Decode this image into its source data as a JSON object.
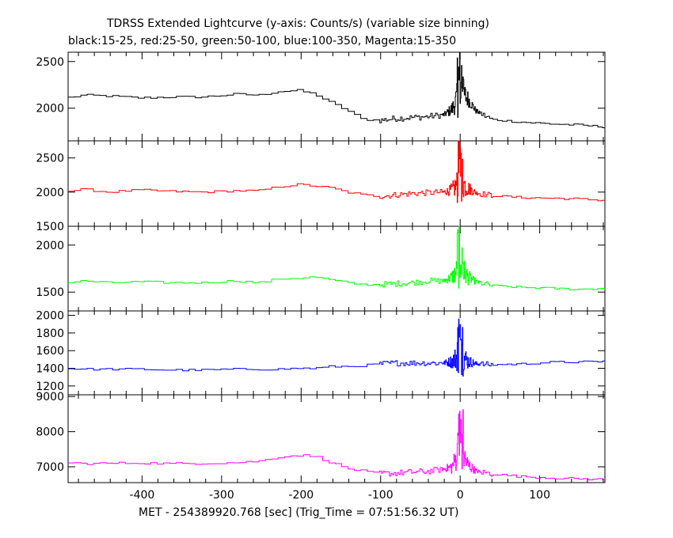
{
  "header": {
    "title_line1": "TDRSS Extended Lightcurve (y-axis: Counts/s) (variable size binning)",
    "title_line2": "black:15-25, red:25-50, green:50-100, blue:100-350, Magenta:15-350"
  },
  "chart_data": {
    "type": "line",
    "title": "TDRSS Extended Lightcurve (y-axis: Counts/s) (variable size binning)",
    "subtitle": "black:15-25, red:25-50, green:50-100, blue:100-350, Magenta:15-350",
    "xlabel": "MET - 254389920.768 [sec] (Trig_Time = 07:51:56.32 UT)",
    "ylabel": "Counts/s",
    "x_ticks": [
      -400,
      -300,
      -200,
      -100,
      0,
      100
    ],
    "xlim": [
      -493,
      182
    ],
    "grid": false,
    "panels": [
      {
        "band": "15-25",
        "color": "#000000",
        "ylim": [
          1650,
          2600
        ],
        "yticks": [
          2000,
          2500
        ],
        "x": [
          -493,
          -470,
          -440,
          -400,
          -360,
          -320,
          -280,
          -250,
          -225,
          -200,
          -180,
          -160,
          -140,
          -120,
          -100,
          -80,
          -60,
          -40,
          -20,
          -10,
          0,
          10,
          20,
          40,
          80,
          120,
          150,
          182
        ],
        "values": [
          2110,
          2140,
          2130,
          2110,
          2120,
          2120,
          2150,
          2140,
          2180,
          2190,
          2150,
          2060,
          1980,
          1880,
          1870,
          1890,
          1900,
          1910,
          1930,
          1990,
          2180,
          2100,
          1970,
          1880,
          1850,
          1830,
          1820,
          1800
        ]
      },
      {
        "band": "25-50",
        "color": "#ff0000",
        "ylim": [
          1500,
          2750
        ],
        "yticks": [
          1500,
          2000,
          2500
        ],
        "x": [
          -493,
          -470,
          -440,
          -400,
          -360,
          -320,
          -280,
          -250,
          -225,
          -200,
          -180,
          -160,
          -140,
          -120,
          -100,
          -80,
          -60,
          -40,
          -20,
          -10,
          0,
          10,
          20,
          40,
          80,
          120,
          150,
          182
        ],
        "values": [
          2010,
          2040,
          2000,
          2030,
          2010,
          2000,
          2020,
          2020,
          2080,
          2110,
          2090,
          2060,
          2000,
          1960,
          1940,
          1960,
          1980,
          1990,
          2000,
          2030,
          2160,
          2060,
          1990,
          1950,
          1920,
          1910,
          1900,
          1880
        ]
      },
      {
        "band": "50-100",
        "color": "#00ff00",
        "ylim": [
          1300,
          2200
        ],
        "yticks": [
          1500,
          2000
        ],
        "x": [
          -493,
          -470,
          -440,
          -400,
          -360,
          -320,
          -280,
          -250,
          -225,
          -200,
          -180,
          -160,
          -140,
          -120,
          -100,
          -80,
          -60,
          -40,
          -20,
          -10,
          0,
          10,
          20,
          40,
          80,
          120,
          150,
          182
        ],
        "values": [
          1600,
          1620,
          1600,
          1610,
          1600,
          1600,
          1620,
          1600,
          1640,
          1650,
          1660,
          1630,
          1600,
          1580,
          1580,
          1590,
          1600,
          1620,
          1620,
          1660,
          1760,
          1660,
          1610,
          1570,
          1550,
          1540,
          1530,
          1540
        ]
      },
      {
        "band": "100-350",
        "color": "#0000ff",
        "ylim": [
          1100,
          2050
        ],
        "yticks": [
          1200,
          1400,
          1600,
          1800,
          2000
        ],
        "x": [
          -493,
          -470,
          -440,
          -400,
          -360,
          -320,
          -280,
          -250,
          -225,
          -200,
          -180,
          -160,
          -140,
          -120,
          -100,
          -80,
          -60,
          -40,
          -20,
          -10,
          0,
          10,
          20,
          40,
          80,
          120,
          150,
          182
        ],
        "values": [
          1400,
          1390,
          1390,
          1390,
          1380,
          1380,
          1390,
          1390,
          1390,
          1400,
          1400,
          1420,
          1420,
          1430,
          1450,
          1460,
          1460,
          1460,
          1460,
          1480,
          1560,
          1480,
          1450,
          1440,
          1450,
          1470,
          1470,
          1480
        ]
      },
      {
        "band": "15-350",
        "color": "#ff00ff",
        "ylim": [
          6550,
          9050
        ],
        "yticks": [
          7000,
          8000,
          9000
        ],
        "x": [
          -493,
          -470,
          -440,
          -400,
          -360,
          -320,
          -280,
          -250,
          -225,
          -200,
          -180,
          -160,
          -140,
          -120,
          -100,
          -80,
          -60,
          -40,
          -20,
          -10,
          0,
          10,
          20,
          40,
          80,
          120,
          150,
          182
        ],
        "values": [
          7120,
          7090,
          7100,
          7110,
          7090,
          7100,
          7120,
          7160,
          7280,
          7330,
          7300,
          7130,
          6950,
          6880,
          6800,
          6820,
          6850,
          6870,
          6940,
          7000,
          7500,
          7050,
          6880,
          6800,
          6720,
          6680,
          6660,
          6640
        ]
      }
    ]
  }
}
